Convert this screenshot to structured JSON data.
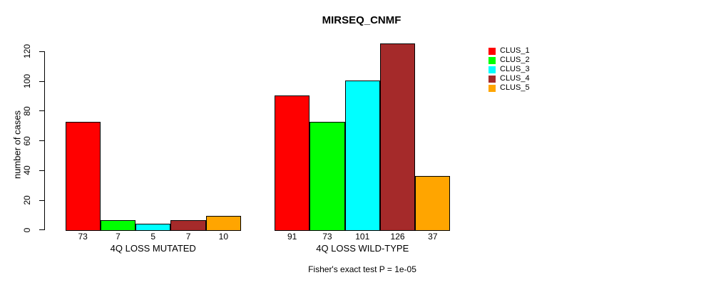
{
  "title": "MIRSEQ_CNMF",
  "caption": "Fisher's exact test P = 1e-05",
  "chart_data": {
    "type": "bar",
    "title": "MIRSEQ_CNMF",
    "xlabel": "",
    "ylabel": "number of cases",
    "groups": [
      "4Q LOSS MUTATED",
      "4Q LOSS WILD-TYPE"
    ],
    "series": [
      {
        "name": "CLUS_1",
        "color": "#FF0000",
        "values": [
          73,
          91
        ]
      },
      {
        "name": "CLUS_2",
        "color": "#00FF00",
        "values": [
          7,
          73
        ]
      },
      {
        "name": "CLUS_3",
        "color": "#00FFFF",
        "values": [
          5,
          101
        ]
      },
      {
        "name": "CLUS_4",
        "color": "#A52A2A",
        "values": [
          7,
          126
        ]
      },
      {
        "name": "CLUS_5",
        "color": "#FFA500",
        "values": [
          10,
          37
        ]
      }
    ],
    "bar_value_labels": [
      [
        "73",
        "7",
        "5",
        "7",
        "10"
      ],
      [
        "91",
        "73",
        "101",
        "126",
        "37"
      ]
    ],
    "yticks": [
      0,
      20,
      40,
      60,
      80,
      100,
      120
    ],
    "ylim": [
      0,
      126
    ],
    "grid": false,
    "legend_position": "right",
    "annotation": "Fisher's exact test P = 1e-05",
    "bar_border_color": "#000000",
    "background_color": "#FFFFFF"
  }
}
